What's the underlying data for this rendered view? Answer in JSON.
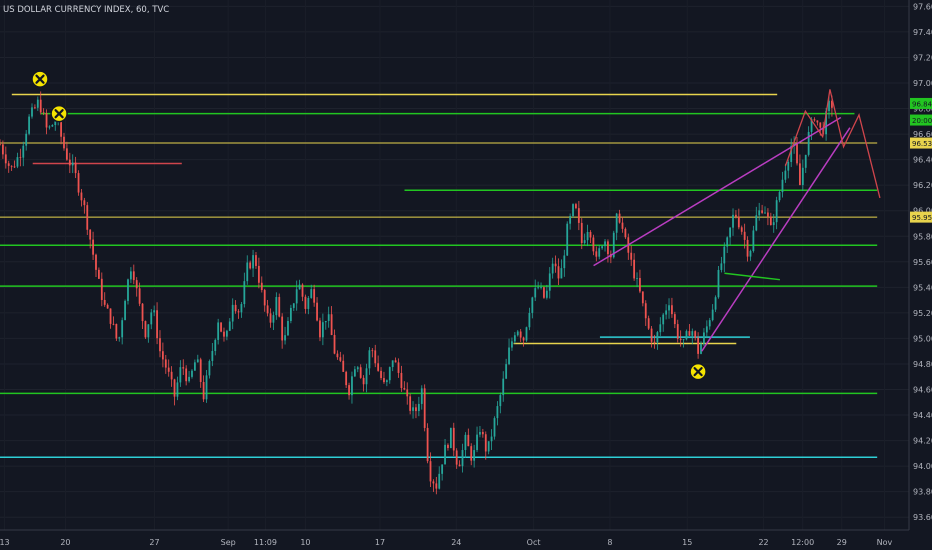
{
  "chart_data": {
    "type": "candlestick",
    "title": "US DOLLAR CURRENCY INDEX, 60, TVC",
    "y_axis": {
      "min": 93.5,
      "max": 97.65,
      "ticks": [
        "97.60",
        "97.40",
        "97.20",
        "97.00",
        "96.80",
        "96.60",
        "96.40",
        "96.20",
        "96.00",
        "95.80",
        "95.60",
        "95.40",
        "95.20",
        "95.00",
        "94.80",
        "94.60",
        "94.40",
        "94.20",
        "94.00",
        "93.80",
        "93.60"
      ]
    },
    "x_axis": {
      "ticks": [
        {
          "label": "13",
          "pos": 0.005
        },
        {
          "label": "20",
          "pos": 0.072
        },
        {
          "label": "27",
          "pos": 0.17
        },
        {
          "label": "Sep",
          "pos": 0.251
        },
        {
          "label": "11:09",
          "pos": 0.292
        },
        {
          "label": "10",
          "pos": 0.336
        },
        {
          "label": "17",
          "pos": 0.418
        },
        {
          "label": "24",
          "pos": 0.502
        },
        {
          "label": "Oct",
          "pos": 0.587
        },
        {
          "label": "8",
          "pos": 0.671
        },
        {
          "label": "15",
          "pos": 0.756
        },
        {
          "label": "22",
          "pos": 0.84
        },
        {
          "label": "12:00",
          "pos": 0.883
        },
        {
          "label": "29",
          "pos": 0.926
        },
        {
          "label": "Nov",
          "pos": 0.973
        }
      ]
    },
    "price_badges": [
      {
        "text": "96.84",
        "value": 96.84,
        "color": "#22c521",
        "text_color": "#131722"
      },
      {
        "text": "20:00",
        "value": 96.71,
        "color": "#22c521",
        "text_color": "#131722"
      },
      {
        "text": "96.53",
        "value": 96.53,
        "color": "#e8d44d",
        "text_color": "#131722"
      },
      {
        "text": "95.95",
        "value": 95.95,
        "color": "#e8d44d",
        "text_color": "#131722"
      }
    ],
    "price_path": [
      [
        0.0,
        96.52
      ],
      [
        0.012,
        96.32
      ],
      [
        0.022,
        96.45
      ],
      [
        0.032,
        96.72
      ],
      [
        0.043,
        96.86
      ],
      [
        0.052,
        96.62
      ],
      [
        0.062,
        96.72
      ],
      [
        0.072,
        96.45
      ],
      [
        0.082,
        96.3
      ],
      [
        0.092,
        96.05
      ],
      [
        0.1,
        95.75
      ],
      [
        0.108,
        95.45
      ],
      [
        0.115,
        95.25
      ],
      [
        0.122,
        95.15
      ],
      [
        0.13,
        94.95
      ],
      [
        0.138,
        95.35
      ],
      [
        0.145,
        95.6
      ],
      [
        0.152,
        95.3
      ],
      [
        0.16,
        95.05
      ],
      [
        0.168,
        95.25
      ],
      [
        0.176,
        94.9
      ],
      [
        0.184,
        94.75
      ],
      [
        0.192,
        94.55
      ],
      [
        0.2,
        94.8
      ],
      [
        0.208,
        94.65
      ],
      [
        0.216,
        94.85
      ],
      [
        0.224,
        94.55
      ],
      [
        0.232,
        94.85
      ],
      [
        0.24,
        95.15
      ],
      [
        0.248,
        94.95
      ],
      [
        0.256,
        95.3
      ],
      [
        0.264,
        95.2
      ],
      [
        0.272,
        95.55
      ],
      [
        0.28,
        95.65
      ],
      [
        0.288,
        95.35
      ],
      [
        0.296,
        95.1
      ],
      [
        0.304,
        95.3
      ],
      [
        0.312,
        94.95
      ],
      [
        0.32,
        95.2
      ],
      [
        0.328,
        95.45
      ],
      [
        0.336,
        95.25
      ],
      [
        0.344,
        95.4
      ],
      [
        0.352,
        95.05
      ],
      [
        0.36,
        95.2
      ],
      [
        0.368,
        94.9
      ],
      [
        0.376,
        94.75
      ],
      [
        0.384,
        94.6
      ],
      [
        0.392,
        94.85
      ],
      [
        0.4,
        94.65
      ],
      [
        0.408,
        94.95
      ],
      [
        0.416,
        94.75
      ],
      [
        0.424,
        94.6
      ],
      [
        0.432,
        94.85
      ],
      [
        0.44,
        94.7
      ],
      [
        0.448,
        94.5
      ],
      [
        0.456,
        94.4
      ],
      [
        0.464,
        94.6
      ],
      [
        0.472,
        93.95
      ],
      [
        0.48,
        93.85
      ],
      [
        0.488,
        94.1
      ],
      [
        0.496,
        94.25
      ],
      [
        0.504,
        94.0
      ],
      [
        0.512,
        94.2
      ],
      [
        0.52,
        94.05
      ],
      [
        0.528,
        94.3
      ],
      [
        0.536,
        94.1
      ],
      [
        0.544,
        94.35
      ],
      [
        0.552,
        94.6
      ],
      [
        0.56,
        94.9
      ],
      [
        0.568,
        95.1
      ],
      [
        0.576,
        95.0
      ],
      [
        0.584,
        95.3
      ],
      [
        0.592,
        95.4
      ],
      [
        0.6,
        95.3
      ],
      [
        0.608,
        95.6
      ],
      [
        0.616,
        95.45
      ],
      [
        0.624,
        95.85
      ],
      [
        0.632,
        96.05
      ],
      [
        0.64,
        95.75
      ],
      [
        0.648,
        95.9
      ],
      [
        0.656,
        95.6
      ],
      [
        0.664,
        95.8
      ],
      [
        0.672,
        95.65
      ],
      [
        0.68,
        96.0
      ],
      [
        0.688,
        95.75
      ],
      [
        0.696,
        95.55
      ],
      [
        0.704,
        95.35
      ],
      [
        0.712,
        95.1
      ],
      [
        0.72,
        94.95
      ],
      [
        0.728,
        95.15
      ],
      [
        0.736,
        95.3
      ],
      [
        0.744,
        95.05
      ],
      [
        0.752,
        94.95
      ],
      [
        0.76,
        95.1
      ],
      [
        0.768,
        94.9
      ],
      [
        0.776,
        95.05
      ],
      [
        0.784,
        95.25
      ],
      [
        0.792,
        95.55
      ],
      [
        0.8,
        95.75
      ],
      [
        0.808,
        96.0
      ],
      [
        0.816,
        95.85
      ],
      [
        0.824,
        95.65
      ],
      [
        0.832,
        95.95
      ],
      [
        0.84,
        96.05
      ],
      [
        0.848,
        95.85
      ],
      [
        0.856,
        96.1
      ],
      [
        0.864,
        96.35
      ],
      [
        0.872,
        96.55
      ],
      [
        0.88,
        96.2
      ],
      [
        0.888,
        96.55
      ],
      [
        0.896,
        96.75
      ],
      [
        0.904,
        96.6
      ],
      [
        0.912,
        96.82
      ],
      [
        0.918,
        96.84
      ]
    ],
    "horizontal_lines": [
      {
        "y": 96.91,
        "x0": 0.013,
        "x1": 0.855,
        "color": "#e8d44d",
        "width": 1.5
      },
      {
        "y": 96.76,
        "x0": 0.045,
        "x1": 0.94,
        "color": "#22c521",
        "width": 1.5
      },
      {
        "y": 96.37,
        "x0": 0.036,
        "x1": 0.2,
        "color": "#d0454c",
        "width": 1.5
      },
      {
        "y": 96.53,
        "x0": 0.0,
        "x1": 0.965,
        "color": "#e8d44d",
        "width": 1
      },
      {
        "y": 96.16,
        "x0": 0.445,
        "x1": 0.965,
        "color": "#22c521",
        "width": 1.5
      },
      {
        "y": 95.95,
        "x0": 0.0,
        "x1": 0.965,
        "color": "#e8d44d",
        "width": 1
      },
      {
        "y": 95.73,
        "x0": 0.0,
        "x1": 0.965,
        "color": "#22c521",
        "width": 1.5
      },
      {
        "y": 95.41,
        "x0": 0.0,
        "x1": 0.965,
        "color": "#22c521",
        "width": 1.5
      },
      {
        "y": 94.57,
        "x0": 0.0,
        "x1": 0.965,
        "color": "#22c521",
        "width": 1.5
      },
      {
        "y": 94.07,
        "x0": 0.0,
        "x1": 0.965,
        "color": "#2ecfd6",
        "width": 1.5
      },
      {
        "y": 94.96,
        "x0": 0.565,
        "x1": 0.81,
        "color": "#e8d44d",
        "width": 1.5
      },
      {
        "y": 95.01,
        "x0": 0.66,
        "x1": 0.825,
        "color": "#2ecfd6",
        "width": 1.5
      }
    ],
    "trend_lines": [
      {
        "x0": 0.653,
        "y0": 95.57,
        "x1": 0.925,
        "y1": 96.73,
        "color": "#b93dc1"
      },
      {
        "x0": 0.772,
        "y0": 94.9,
        "x1": 0.935,
        "y1": 96.65,
        "color": "#b93dc1"
      },
      {
        "x0": 0.797,
        "y0": 95.51,
        "x1": 0.858,
        "y1": 95.46,
        "color": "#22c521"
      }
    ],
    "projection_path": [
      [
        0.864,
        96.35
      ],
      [
        0.886,
        96.78
      ],
      [
        0.905,
        96.58
      ],
      [
        0.913,
        96.95
      ],
      [
        0.928,
        96.5
      ],
      [
        0.945,
        96.75
      ],
      [
        0.968,
        96.1
      ]
    ],
    "markers": [
      {
        "x": 0.044,
        "y": 97.03
      },
      {
        "x": 0.065,
        "y": 96.76
      },
      {
        "x": 0.768,
        "y": 94.74
      }
    ]
  }
}
